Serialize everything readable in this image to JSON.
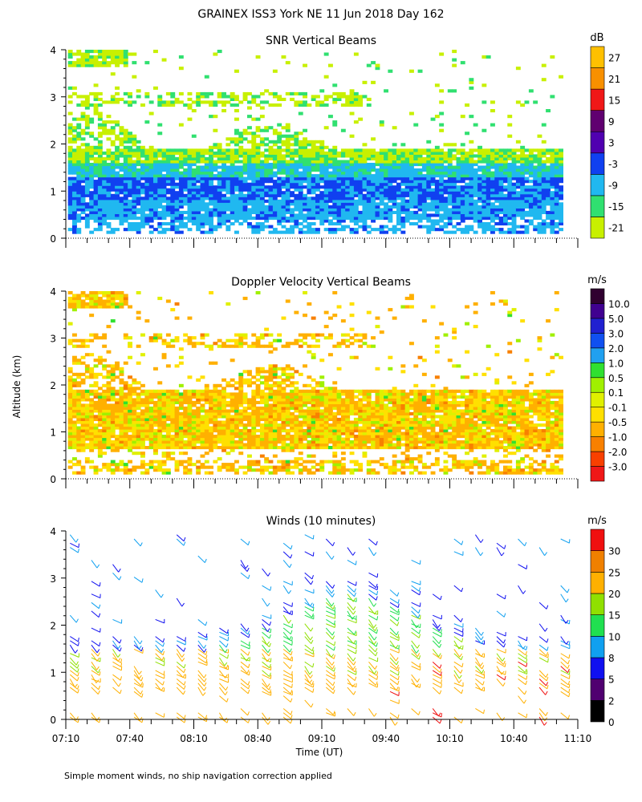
{
  "title": "GRAINEX ISS3 York NE  11 Jun 2018 Day 162",
  "ylabel": "Altitude (km)",
  "xlabel": "Time (UT)",
  "footnote": "Simple moment winds, no ship navigation correction applied",
  "colors": {
    "snr": [
      "#c8f000",
      "#30e070",
      "#20b8f0",
      "#1040f0",
      "#5000b0",
      "#600070",
      "#f01818",
      "#f89000",
      "#ffc000"
    ],
    "vel": [
      "#f01818",
      "#f84000",
      "#f88000",
      "#ffb000",
      "#ffe000",
      "#e0f000",
      "#a0f000",
      "#30e030",
      "#20a0f0",
      "#1050f0",
      "#2020d0",
      "#400090",
      "#300030"
    ],
    "wind": [
      "#000000",
      "#500070",
      "#1010f0",
      "#10a0f0",
      "#20e050",
      "#90e000",
      "#ffb000",
      "#f08000",
      "#f01010"
    ]
  },
  "chart_data": [
    {
      "type": "heatmap",
      "title": "SNR Vertical Beams",
      "units": "dB",
      "xlabel": "Time (UT)",
      "ylabel": "Altitude (km)",
      "xlim": [
        "07:10",
        "11:10"
      ],
      "ylim": [
        0,
        4
      ],
      "yticks": [
        "0",
        "1",
        "2",
        "3",
        "4"
      ],
      "colorbar_labels": [
        "-21",
        "-15",
        "-9",
        "-3",
        "3",
        "9",
        "15",
        "21",
        "27"
      ]
    },
    {
      "type": "heatmap",
      "title": "Doppler Velocity Vertical Beams",
      "units": "m/s",
      "xlabel": "Time (UT)",
      "ylabel": "Altitude (km)",
      "xlim": [
        "07:10",
        "11:10"
      ],
      "ylim": [
        0,
        4
      ],
      "yticks": [
        "0",
        "1",
        "2",
        "3",
        "4"
      ],
      "colorbar_labels": [
        "-3.0",
        "-2.0",
        "-1.0",
        "-0.5",
        "-0.1",
        "0.1",
        "0.5",
        "1.0",
        "2.0",
        "3.0",
        "5.0",
        "10.0"
      ]
    },
    {
      "type": "scatter",
      "title": "Winds (10 minutes)",
      "units": "m/s",
      "xlabel": "Time (UT)",
      "ylabel": "Altitude (km)",
      "xlim": [
        "07:10",
        "11:10"
      ],
      "ylim": [
        0,
        4
      ],
      "yticks": [
        "0",
        "1",
        "2",
        "3",
        "4"
      ],
      "xticks": [
        "07:10",
        "07:40",
        "08:10",
        "08:40",
        "09:10",
        "09:40",
        "10:10",
        "10:40",
        "11:10"
      ],
      "colorbar_labels": [
        "0",
        "2",
        "5",
        "8",
        "10",
        "15",
        "20",
        "25",
        "30"
      ]
    }
  ]
}
